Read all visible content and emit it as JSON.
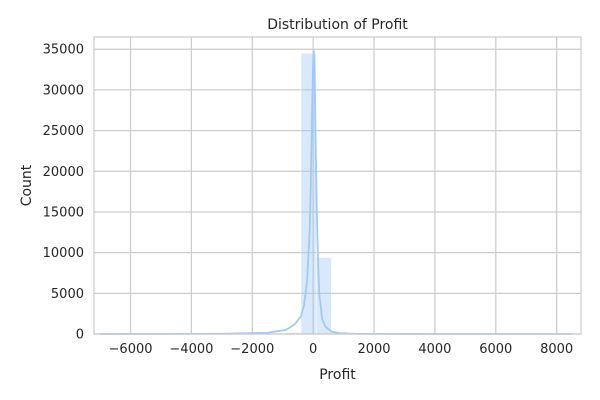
{
  "chart_data": {
    "type": "histogram",
    "title": "Distribution of Profit",
    "xlabel": "Profit",
    "ylabel": "Count",
    "xlim": [
      -7200,
      8800
    ],
    "ylim": [
      0,
      36500
    ],
    "xticks": [
      -6000,
      -4000,
      -2000,
      0,
      2000,
      4000,
      6000,
      8000
    ],
    "xtick_labels": [
      "−6000",
      "−4000",
      "−2000",
      "0",
      "2000",
      "4000",
      "6000",
      "8000"
    ],
    "yticks": [
      0,
      5000,
      10000,
      15000,
      20000,
      25000,
      30000,
      35000
    ],
    "ytick_labels": [
      "0",
      "5000",
      "10000",
      "15000",
      "20000",
      "25000",
      "30000",
      "35000"
    ],
    "grid": true,
    "bins": [
      {
        "x0": -6600,
        "x1": -6100,
        "count": 2
      },
      {
        "x0": -3900,
        "x1": -3400,
        "count": 3
      },
      {
        "x0": -3400,
        "x1": -2900,
        "count": 5
      },
      {
        "x0": -2900,
        "x1": -2400,
        "count": 8
      },
      {
        "x0": -2400,
        "x1": -1900,
        "count": 15
      },
      {
        "x0": -1900,
        "x1": -1400,
        "count": 30
      },
      {
        "x0": -1400,
        "x1": -900,
        "count": 60
      },
      {
        "x0": -900,
        "x1": -400,
        "count": 180
      },
      {
        "x0": -400,
        "x1": 100,
        "count": 34500
      },
      {
        "x0": 100,
        "x1": 600,
        "count": 9400
      },
      {
        "x0": 600,
        "x1": 1100,
        "count": 300
      },
      {
        "x0": 1100,
        "x1": 1600,
        "count": 80
      },
      {
        "x0": 1600,
        "x1": 2100,
        "count": 30
      },
      {
        "x0": 2100,
        "x1": 2600,
        "count": 15
      },
      {
        "x0": 2600,
        "x1": 3100,
        "count": 8
      },
      {
        "x0": 3100,
        "x1": 3600,
        "count": 5
      },
      {
        "x0": 3600,
        "x1": 4100,
        "count": 3
      },
      {
        "x0": 4600,
        "x1": 5100,
        "count": 2
      },
      {
        "x0": 5600,
        "x1": 6100,
        "count": 1
      },
      {
        "x0": 8100,
        "x1": 8600,
        "count": 1
      }
    ],
    "kde": {
      "x": [
        -7000,
        -3000,
        -1500,
        -900,
        -600,
        -400,
        -300,
        -200,
        -120,
        -80,
        -40,
        0,
        20,
        40,
        60,
        80,
        120,
        160,
        200,
        300,
        400,
        600,
        900,
        1500,
        3000,
        8500
      ],
      "y": [
        0,
        30,
        150,
        500,
        1200,
        2200,
        3500,
        6500,
        12000,
        18000,
        26000,
        33500,
        34800,
        33000,
        29000,
        24000,
        15000,
        9000,
        5000,
        1800,
        900,
        300,
        80,
        20,
        5,
        0
      ]
    },
    "colors": {
      "bar_fill": "#a1c9f4",
      "bar_fill_opacity": 0.4,
      "kde_line": "#a1c9f4",
      "grid": "#cccccc",
      "axis": "#cccccc",
      "background": "#ffffff"
    }
  }
}
